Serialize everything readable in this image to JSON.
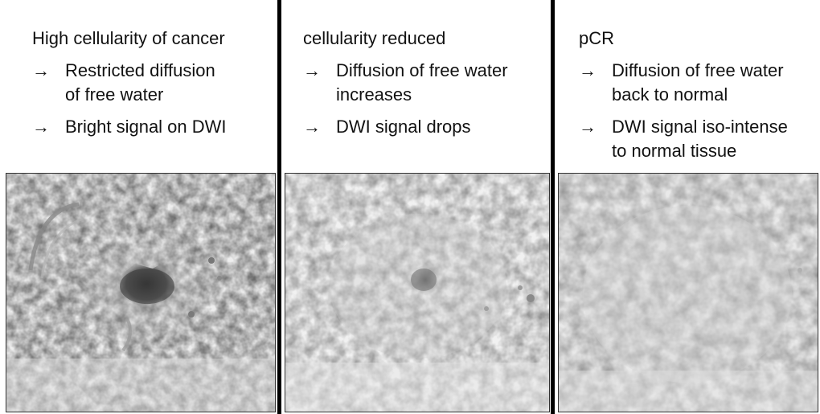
{
  "panels": [
    {
      "heading": "High cellularity of cancer",
      "arrow": "→",
      "bullets": [
        {
          "lines": [
            "Restricted diffusion",
            "of free water"
          ]
        },
        {
          "lines": [
            "Bright signal on DWI"
          ]
        }
      ]
    },
    {
      "heading": "cellularity reduced",
      "arrow": "→",
      "bullets": [
        {
          "lines": [
            "Diffusion of free water",
            "increases"
          ]
        },
        {
          "lines": [
            "DWI signal drops"
          ]
        }
      ]
    },
    {
      "heading": "pCR",
      "arrow": "→",
      "bullets": [
        {
          "lines": [
            "Diffusion of free water",
            "back to normal"
          ]
        },
        {
          "lines": [
            "DWI signal iso-intense",
            "to normal tissue"
          ]
        }
      ]
    }
  ]
}
